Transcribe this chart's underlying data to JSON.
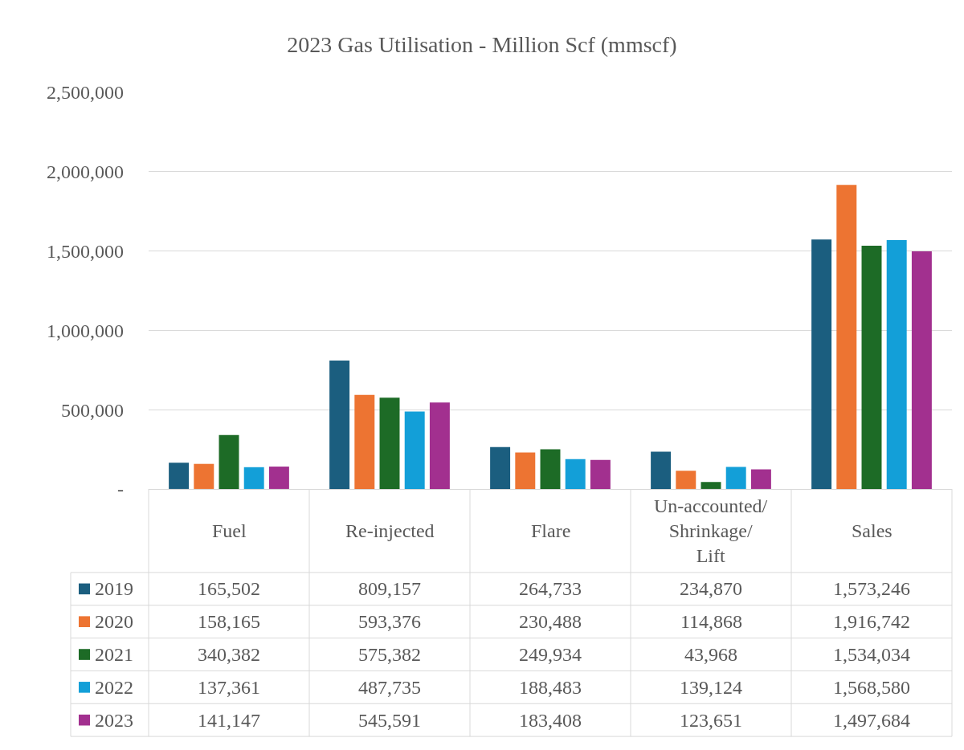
{
  "chart_data": {
    "type": "bar",
    "title": "2023 Gas Utilisation - Million Scf (mmscf)",
    "categories": [
      "Fuel",
      "Re-injected",
      "Flare",
      "Un-accounted/ Shrinkage/ Lift",
      "Sales"
    ],
    "series": [
      {
        "name": "2019",
        "color": "#1b5e7f",
        "values": [
          165502,
          809157,
          264733,
          234870,
          1573246
        ],
        "value_labels": [
          "165,502",
          "809,157",
          "264,733",
          "234,870",
          "1,573,246"
        ]
      },
      {
        "name": "2020",
        "color": "#ed7432",
        "values": [
          158165,
          593376,
          230488,
          114868,
          1916742
        ],
        "value_labels": [
          "158,165",
          "593,376",
          "230,488",
          "114,868",
          "1,916,742"
        ]
      },
      {
        "name": "2021",
        "color": "#1d6b26",
        "values": [
          340382,
          575382,
          249934,
          43968,
          1534034
        ],
        "value_labels": [
          "340,382",
          "575,382",
          "249,934",
          "43,968",
          "1,534,034"
        ]
      },
      {
        "name": "2022",
        "color": "#139fd8",
        "values": [
          137361,
          487735,
          188483,
          139124,
          1568580
        ],
        "value_labels": [
          "137,361",
          "487,735",
          "188,483",
          "139,124",
          "1,568,580"
        ]
      },
      {
        "name": "2023",
        "color": "#a2308f",
        "values": [
          141147,
          545591,
          183408,
          123651,
          1497684
        ],
        "value_labels": [
          "141,147",
          "545,591",
          "183,408",
          "123,651",
          "1,497,684"
        ]
      }
    ],
    "ylim": [
      0,
      2500000
    ],
    "yticks": [
      {
        "value": 0,
        "label": "-"
      },
      {
        "value": 500000,
        "label": "500,000"
      },
      {
        "value": 1000000,
        "label": "1,000,000"
      },
      {
        "value": 1500000,
        "label": "1,500,000"
      },
      {
        "value": 2000000,
        "label": "2,000,000"
      },
      {
        "value": 2500000,
        "label": "2,500,000"
      }
    ],
    "grid": "y",
    "legend": "bottom left"
  }
}
